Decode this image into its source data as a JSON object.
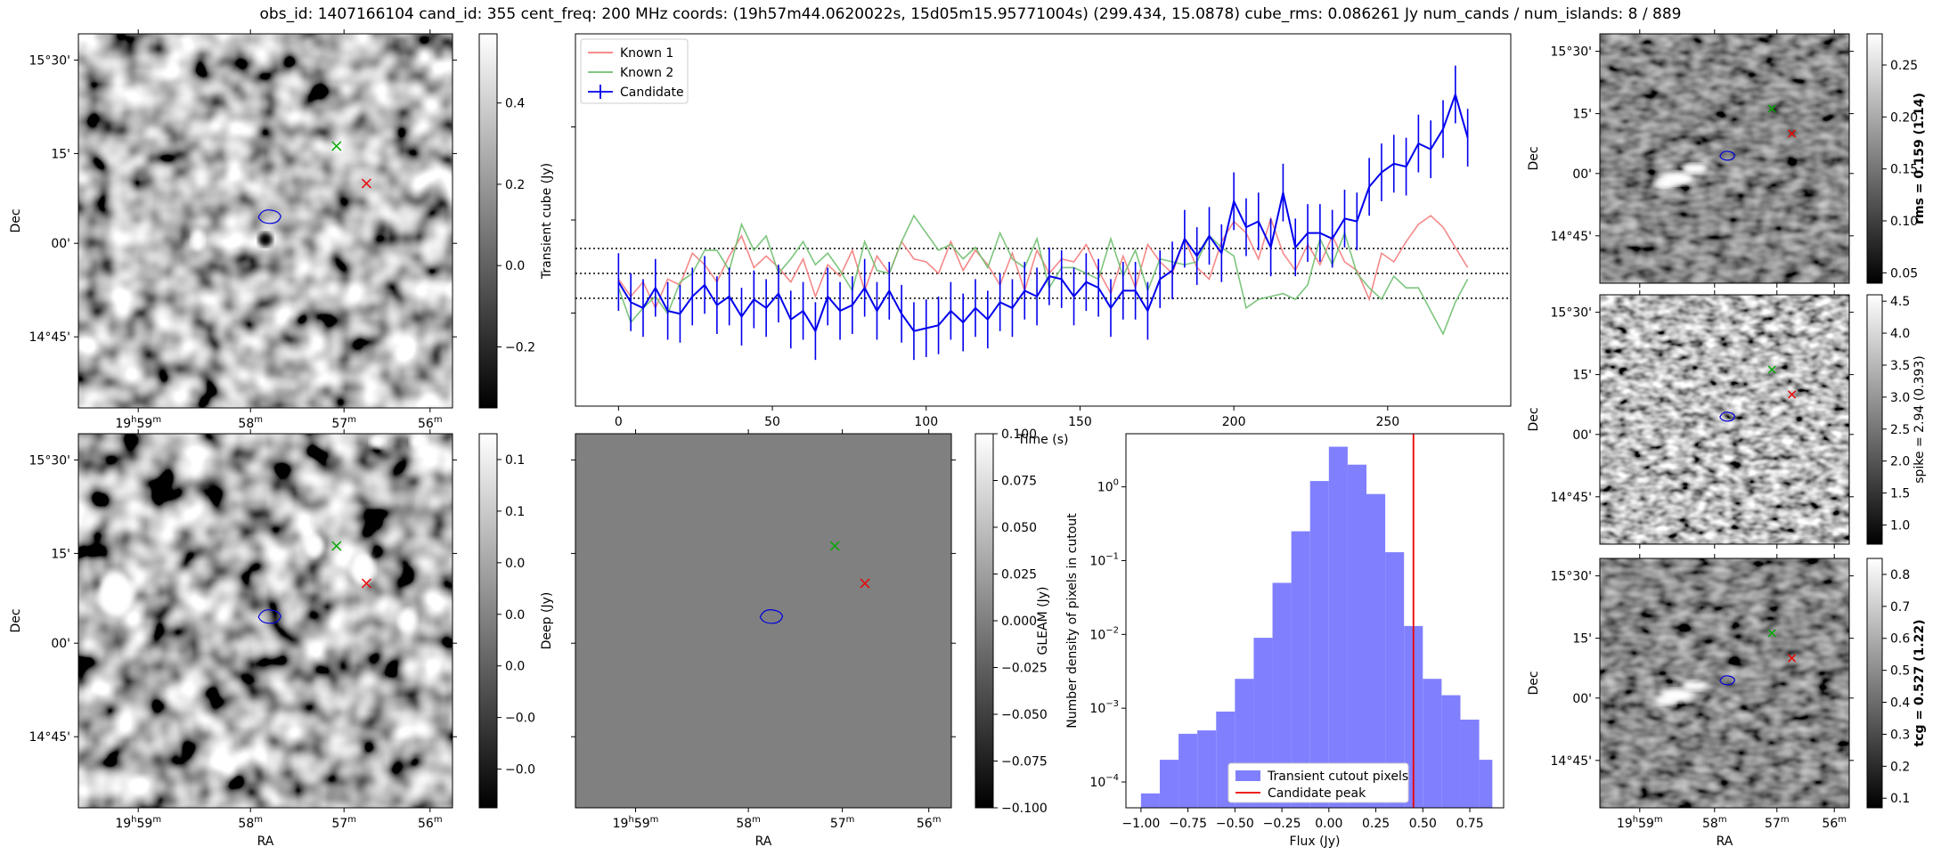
{
  "header": {
    "title": "obs_id: 1407166104 cand_id: 355 cent_freq: 200 MHz coords: (19h57m44.0620022s, 15d05m15.95771004s) (299.434, 15.0878) cube_rms: 0.086261 Jy num_cands / num_islands: 8 / 889"
  },
  "sky_axes": {
    "xlabel": "RA",
    "ylabel": "Dec",
    "ra_ticks": [
      {
        "h": "19",
        "m": "59",
        "label": "19h59m"
      },
      {
        "h": "",
        "m": "58",
        "label": "58m"
      },
      {
        "h": "",
        "m": "57",
        "label": "57m"
      },
      {
        "h": "",
        "m": "56",
        "label": "56m"
      }
    ],
    "dec_ticks": [
      "15°30'",
      "15'",
      "00'",
      "14°45'"
    ]
  },
  "colors": {
    "known1": "#f47c7c",
    "known2": "#6fbf6f",
    "candidate": "#0000ee",
    "histogram": "#8080ff",
    "peak_line": "#ee0000",
    "green_marker": "#00aa00",
    "red_marker": "#ee0000",
    "contour": "#0000dd"
  },
  "chart_data": [
    {
      "id": "transient_cube",
      "type": "heatmap",
      "xlabel": "RA",
      "ylabel": "Dec",
      "colorbar": {
        "label": "Transient cube (Jy)",
        "ticks": [
          0.4,
          0.2,
          0.0,
          -0.2
        ],
        "range": [
          -0.35,
          0.57
        ]
      },
      "markers": [
        {
          "symbol": "x",
          "color": "red"
        },
        {
          "symbol": "x",
          "color": "green"
        }
      ],
      "contour": "blue"
    },
    {
      "id": "deep",
      "type": "heatmap",
      "xlabel": "RA",
      "ylabel": "Dec",
      "colorbar": {
        "label": "Deep (Jy)",
        "ticks": [
          0.08,
          0.06,
          0.04,
          0.02,
          0.0,
          -0.02,
          -0.04
        ],
        "range": [
          -0.055,
          0.09
        ]
      },
      "markers": [
        {
          "symbol": "x",
          "color": "red"
        },
        {
          "symbol": "x",
          "color": "green"
        }
      ],
      "contour": "blue"
    },
    {
      "id": "gleam",
      "type": "heatmap",
      "xlabel": "RA",
      "ylabel": "",
      "colorbar": {
        "label": "GLEAM (Jy)",
        "ticks": [
          0.1,
          0.075,
          0.05,
          0.025,
          0.0,
          -0.025,
          -0.05,
          -0.075,
          -0.1
        ],
        "tick_labels": [
          "0.100",
          "0.075",
          "0.050",
          "0.025",
          "0.000",
          "−0.025",
          "−0.050",
          "−0.075",
          "−0.100"
        ],
        "range": [
          -0.1,
          0.1
        ]
      },
      "value": 0.0
    },
    {
      "id": "lightcurve",
      "type": "line",
      "xlabel": "Time (s)",
      "ylabel": "",
      "xlim": [
        -14,
        290
      ],
      "ylim": [
        -0.46,
        0.83
      ],
      "xticks": [
        0,
        50,
        100,
        150,
        200,
        250
      ],
      "hlines": [
        0.086261,
        0.0,
        -0.086261
      ],
      "legend": {
        "location": "upper-left",
        "entries": [
          "Known 1",
          "Known 2",
          "Candidate"
        ]
      },
      "x": [
        0,
        4,
        8,
        12,
        16,
        20,
        24,
        28,
        32,
        36,
        40,
        44,
        48,
        52,
        56,
        60,
        64,
        68,
        72,
        76,
        80,
        84,
        88,
        92,
        96,
        100,
        104,
        108,
        112,
        116,
        120,
        124,
        128,
        132,
        136,
        140,
        144,
        148,
        152,
        156,
        160,
        164,
        168,
        172,
        176,
        180,
        184,
        188,
        192,
        196,
        200,
        204,
        208,
        212,
        216,
        220,
        224,
        228,
        232,
        236,
        240,
        244,
        248,
        252,
        256,
        260,
        264,
        268,
        272,
        276
      ],
      "series": [
        {
          "name": "Known 1",
          "values": [
            -0.02,
            -0.08,
            -0.03,
            -0.12,
            -0.02,
            -0.04,
            0.07,
            0.03,
            -0.03,
            0.06,
            0.13,
            0.02,
            0.06,
            0.02,
            -0.03,
            0.05,
            -0.08,
            0.03,
            -0.01,
            0.08,
            -0.06,
            0.06,
            0.0,
            0.11,
            0.05,
            0.04,
            0.0,
            0.11,
            0.01,
            0.08,
            0.03,
            -0.04,
            0.07,
            -0.06,
            0.08,
            0.0,
            0.05,
            0.04,
            0.1,
            0.01,
            -0.07,
            0.06,
            -0.05,
            0.1,
            0.04,
            0.0,
            0.12,
            0.02,
            -0.02,
            0.11,
            0.18,
            0.14,
            0.05,
            0.19,
            0.07,
            0.01,
            0.1,
            0.03,
            0.13,
            0.04,
            0.01,
            -0.09,
            0.07,
            0.04,
            0.11,
            0.17,
            0.2,
            0.16,
            0.09,
            0.02
          ]
        },
        {
          "name": "Known 2",
          "values": [
            -0.05,
            -0.17,
            -0.12,
            -0.08,
            -0.14,
            -0.03,
            0.0,
            0.08,
            0.08,
            0.01,
            0.17,
            0.08,
            0.13,
            0.0,
            0.05,
            0.11,
            0.03,
            0.07,
            0.01,
            -0.06,
            0.11,
            0.01,
            0.0,
            0.11,
            0.2,
            0.14,
            0.08,
            0.1,
            0.05,
            0.09,
            0.02,
            0.14,
            0.05,
            0.02,
            0.12,
            -0.05,
            0.02,
            0.02,
            0.0,
            -0.02,
            0.12,
            -0.01,
            0.08,
            -0.06,
            0.05,
            0.04,
            0.03,
            0.04,
            0.13,
            0.09,
            0.06,
            -0.12,
            -0.09,
            -0.08,
            -0.07,
            -0.09,
            -0.04,
            0.12,
            0.03,
            0.14,
            0.0,
            -0.05,
            -0.09,
            -0.01,
            -0.05,
            -0.05,
            -0.13,
            -0.21,
            -0.1,
            -0.02
          ]
        },
        {
          "name": "Candidate",
          "values": [
            -0.03,
            -0.1,
            -0.12,
            -0.05,
            -0.13,
            -0.14,
            -0.08,
            -0.04,
            -0.11,
            -0.08,
            -0.15,
            -0.09,
            -0.12,
            -0.07,
            -0.16,
            -0.13,
            -0.2,
            -0.08,
            -0.13,
            -0.11,
            -0.05,
            -0.13,
            -0.06,
            -0.14,
            -0.2,
            -0.19,
            -0.18,
            -0.13,
            -0.17,
            -0.12,
            -0.16,
            -0.1,
            -0.12,
            -0.06,
            -0.08,
            -0.01,
            -0.02,
            -0.08,
            -0.03,
            -0.05,
            -0.12,
            -0.06,
            -0.06,
            -0.13,
            -0.02,
            0.01,
            0.12,
            0.06,
            0.13,
            0.07,
            0.25,
            0.16,
            0.18,
            0.09,
            0.28,
            0.09,
            0.14,
            0.14,
            0.12,
            0.19,
            0.18,
            0.3,
            0.35,
            0.38,
            0.37,
            0.45,
            0.43,
            0.5,
            0.62,
            0.47
          ],
          "error": 0.1
        }
      ]
    },
    {
      "id": "flux_histogram",
      "type": "bar",
      "xlabel": "Flux (Jy)",
      "ylabel": "Number density of pixels in cutout",
      "xlim": [
        -1.08,
        0.93
      ],
      "ylim_log10": [
        -4.35,
        0.72
      ],
      "xticks": [
        -1.0,
        -0.75,
        -0.5,
        -0.25,
        0.0,
        0.25,
        0.5,
        0.75
      ],
      "xtick_labels": [
        "−1.00",
        "−0.75",
        "−0.50",
        "−0.25",
        "0.00",
        "0.25",
        "0.50",
        "0.75"
      ],
      "yticks_log10": [
        0,
        -1,
        -2,
        -3,
        -4
      ],
      "legend": {
        "location": "lower-center",
        "entries": [
          "Transient cutout pixels",
          "Candidate peak"
        ]
      },
      "bin_edges": [
        -1.0,
        -0.9,
        -0.8,
        -0.7,
        -0.6,
        -0.5,
        -0.4,
        -0.3,
        -0.2,
        -0.1,
        0.0,
        0.1,
        0.2,
        0.3,
        0.4,
        0.5,
        0.6,
        0.7,
        0.8,
        0.87
      ],
      "values": [
        7e-05,
        0.0002,
        0.00045,
        0.0005,
        0.0009,
        0.0025,
        0.009,
        0.05,
        0.25,
        1.2,
        3.5,
        2.0,
        0.8,
        0.13,
        0.013,
        0.0025,
        0.0015,
        0.0007,
        0.0002
      ],
      "peak": 0.45
    },
    {
      "id": "rms",
      "type": "heatmap",
      "xlabel": "",
      "ylabel": "Dec",
      "colorbar": {
        "label": "rms = 0.159 (1.14)",
        "bold": true,
        "ticks": [
          0.25,
          0.2,
          0.15,
          0.1,
          0.05
        ],
        "tick_labels": [
          "0.25",
          "0.20",
          "0.15",
          "0.10",
          "0.05"
        ],
        "range": [
          0.04,
          0.28
        ]
      }
    },
    {
      "id": "spike",
      "type": "heatmap",
      "xlabel": "",
      "ylabel": "Dec",
      "colorbar": {
        "label": "spike = 2.94 (0.393)",
        "bold": false,
        "ticks": [
          4.5,
          4.0,
          3.5,
          3.0,
          2.5,
          2.0,
          1.5,
          1.0
        ],
        "tick_labels": [
          "4.5",
          "4.0",
          "3.5",
          "3.0",
          "2.5",
          "2.0",
          "1.5",
          "1.0"
        ],
        "range": [
          0.7,
          4.6
        ]
      }
    },
    {
      "id": "tcg",
      "type": "heatmap",
      "xlabel": "RA",
      "ylabel": "Dec",
      "colorbar": {
        "label": "tcg = 0.527 (1.22)",
        "bold": true,
        "ticks": [
          0.8,
          0.7,
          0.6,
          0.5,
          0.4,
          0.3,
          0.2,
          0.1
        ],
        "tick_labels": [
          "0.8",
          "0.7",
          "0.6",
          "0.5",
          "0.4",
          "0.3",
          "0.2",
          "0.1"
        ],
        "range": [
          0.07,
          0.85
        ]
      }
    }
  ]
}
